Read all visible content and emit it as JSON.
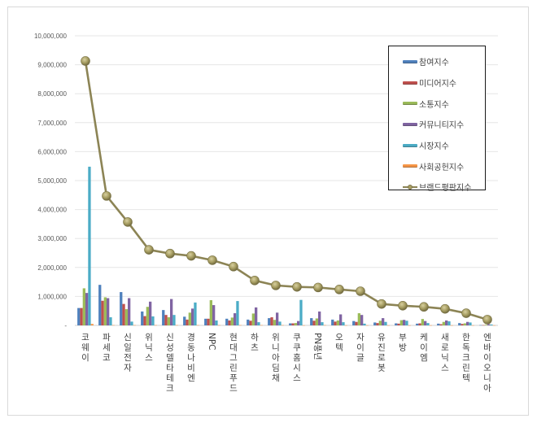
{
  "chart_data": {
    "type": "bar",
    "title": "",
    "xlabel": "",
    "ylabel": "",
    "ylim": [
      0,
      10000000
    ],
    "y_ticks": [
      "-",
      "1,000,000",
      "2,000,000",
      "3,000,000",
      "4,000,000",
      "5,000,000",
      "6,000,000",
      "7,000,000",
      "8,000,000",
      "9,000,000",
      "10,000,000"
    ],
    "grid": true,
    "legend_position": "upper-right",
    "categories": [
      "코웨이",
      "파세코",
      "신일전자",
      "위닉스",
      "신성델타테크",
      "경동나비엔",
      "NPC",
      "현대그린푸드",
      "하츠",
      "위니아딤채",
      "쿠쿠홈시스",
      "PN풍년",
      "오텍",
      "자이글",
      "유진로봇",
      "부방",
      "케이엠",
      "새로닉스",
      "한독크린텍",
      "엔바이오니아"
    ],
    "series": [
      {
        "name": "참여지수",
        "type": "bar",
        "color": "#4f81bd",
        "values": [
          600000,
          1400000,
          1150000,
          480000,
          530000,
          300000,
          230000,
          230000,
          200000,
          250000,
          70000,
          250000,
          200000,
          150000,
          100000,
          70000,
          60000,
          60000,
          80000,
          10000
        ]
      },
      {
        "name": "미디어지수",
        "type": "bar",
        "color": "#c0504d",
        "values": [
          600000,
          850000,
          740000,
          320000,
          360000,
          200000,
          230000,
          170000,
          160000,
          280000,
          70000,
          160000,
          130000,
          120000,
          80000,
          60000,
          70000,
          40000,
          50000,
          10000
        ]
      },
      {
        "name": "소통지수",
        "type": "bar",
        "color": "#9bbb59",
        "values": [
          1280000,
          970000,
          560000,
          640000,
          280000,
          440000,
          870000,
          270000,
          410000,
          190000,
          80000,
          240000,
          170000,
          420000,
          160000,
          180000,
          220000,
          120000,
          70000,
          20000
        ]
      },
      {
        "name": "커뮤니티지수",
        "type": "bar",
        "color": "#8064a2",
        "values": [
          1120000,
          940000,
          940000,
          820000,
          910000,
          580000,
          700000,
          420000,
          620000,
          440000,
          150000,
          480000,
          380000,
          360000,
          250000,
          190000,
          150000,
          170000,
          120000,
          40000
        ]
      },
      {
        "name": "시장지수",
        "type": "bar",
        "color": "#4bacc6",
        "values": [
          5480000,
          280000,
          130000,
          310000,
          360000,
          790000,
          170000,
          840000,
          110000,
          130000,
          880000,
          110000,
          110000,
          60000,
          120000,
          160000,
          80000,
          140000,
          100000,
          30000
        ]
      },
      {
        "name": "사회공헌지수",
        "type": "bar",
        "color": "#f79646",
        "values": [
          50000,
          10000,
          10000,
          10000,
          10000,
          10000,
          10000,
          10000,
          10000,
          10000,
          5000,
          10000,
          5000,
          5000,
          5000,
          5000,
          5000,
          5000,
          5000,
          5000
        ]
      },
      {
        "name": "브랜드평판지수",
        "type": "line",
        "color": "#8c8455",
        "values": [
          9130000,
          4470000,
          3570000,
          2610000,
          2480000,
          2400000,
          2250000,
          2030000,
          1550000,
          1380000,
          1330000,
          1310000,
          1240000,
          1180000,
          740000,
          680000,
          640000,
          570000,
          420000,
          200000
        ]
      }
    ]
  },
  "legend": {
    "items": [
      {
        "label": "참여지수",
        "color": "#4f81bd",
        "kind": "bar"
      },
      {
        "label": "미디어지수",
        "color": "#c0504d",
        "kind": "bar"
      },
      {
        "label": "소통지수",
        "color": "#9bbb59",
        "kind": "bar"
      },
      {
        "label": "커뮤니티지수",
        "color": "#8064a2",
        "kind": "bar"
      },
      {
        "label": "시장지수",
        "color": "#4bacc6",
        "kind": "bar"
      },
      {
        "label": "사회공헌지수",
        "color": "#f79646",
        "kind": "bar"
      },
      {
        "label": "브랜드평판지수",
        "color": "#8c8455",
        "kind": "line"
      }
    ]
  }
}
